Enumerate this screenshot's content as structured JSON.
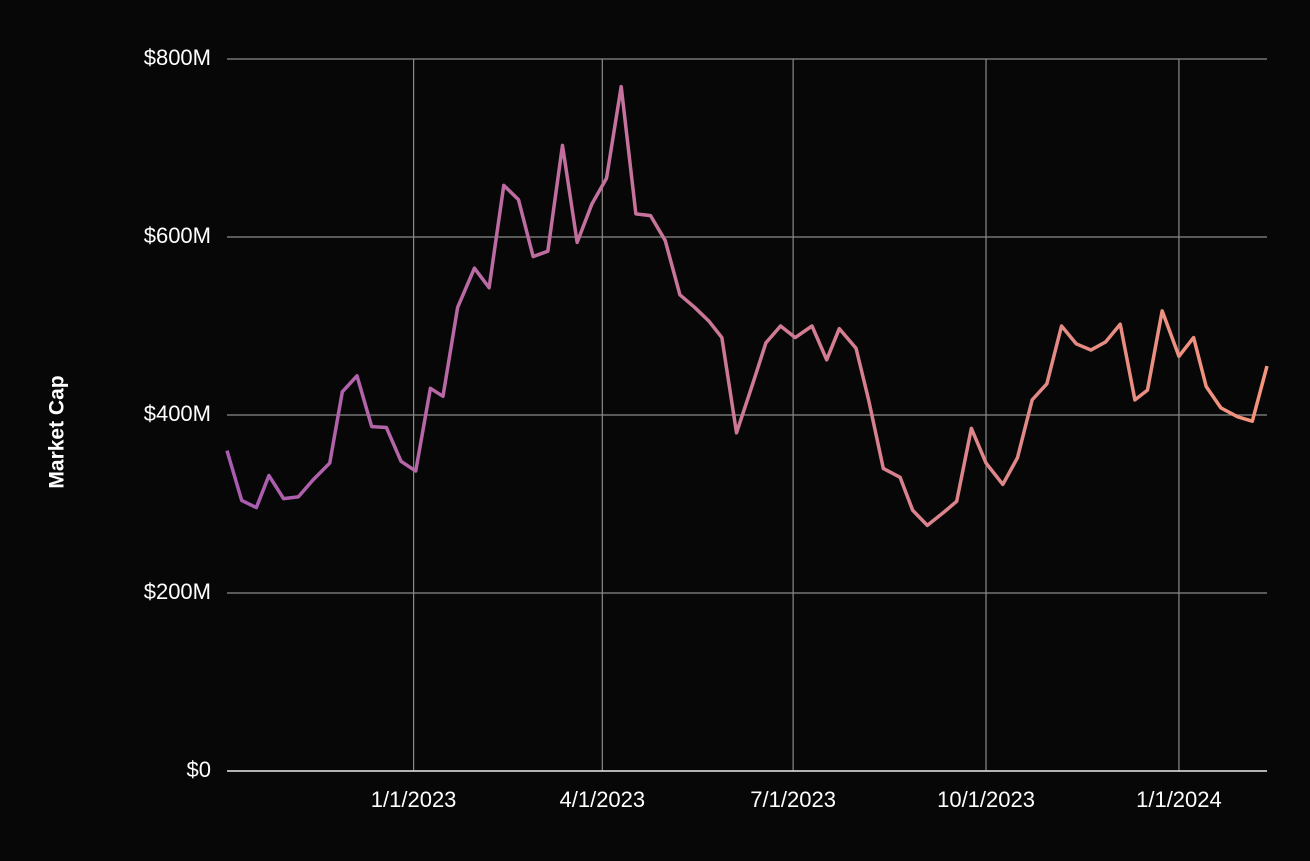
{
  "chart_data": {
    "type": "line",
    "y_label": "Market Cap",
    "x": [
      "2022-10-04",
      "2022-10-11",
      "2022-10-18",
      "2022-10-24",
      "2022-10-31",
      "2022-11-07",
      "2022-11-14",
      "2022-11-22",
      "2022-11-28",
      "2022-12-05",
      "2022-12-12",
      "2022-12-19",
      "2022-12-26",
      "2023-01-02",
      "2023-01-09",
      "2023-01-15",
      "2023-01-22",
      "2023-01-30",
      "2023-02-06",
      "2023-02-13",
      "2023-02-20",
      "2023-02-27",
      "2023-03-06",
      "2023-03-13",
      "2023-03-20",
      "2023-03-27",
      "2023-04-03",
      "2023-04-10",
      "2023-04-17",
      "2023-04-24",
      "2023-05-01",
      "2023-05-08",
      "2023-05-15",
      "2023-05-22",
      "2023-05-28",
      "2023-06-04",
      "2023-06-12",
      "2023-06-18",
      "2023-06-25",
      "2023-07-02",
      "2023-07-10",
      "2023-07-17",
      "2023-07-23",
      "2023-07-31",
      "2023-08-06",
      "2023-08-13",
      "2023-08-21",
      "2023-08-27",
      "2023-09-03",
      "2023-09-11",
      "2023-09-17",
      "2023-09-24",
      "2023-10-01",
      "2023-10-09",
      "2023-10-16",
      "2023-10-23",
      "2023-10-30",
      "2023-11-06",
      "2023-11-13",
      "2023-11-20",
      "2023-11-27",
      "2023-12-04",
      "2023-12-11",
      "2023-12-17",
      "2023-12-24",
      "2024-01-01",
      "2024-01-08",
      "2024-01-14",
      "2024-01-21",
      "2024-01-29",
      "2024-02-05",
      "2024-02-12"
    ],
    "series": [
      {
        "color": [
          "#a95cb1",
          "#f3957a"
        ],
        "values": [
          360000000,
          304000000,
          296000000,
          332000000,
          306000000,
          308000000,
          327000000,
          346000000,
          426000000,
          444000000,
          387000000,
          386000000,
          348000000,
          337000000,
          430000000,
          421000000,
          521000000,
          565000000,
          543000000,
          658000000,
          642000000,
          578000000,
          584000000,
          703000000,
          594000000,
          637000000,
          666000000,
          769000000,
          626000000,
          624000000,
          596000000,
          535000000,
          521000000,
          505000000,
          487000000,
          380000000,
          437000000,
          481000000,
          500000000,
          487000000,
          500000000,
          462000000,
          497000000,
          475000000,
          417000000,
          340000000,
          330000000,
          293000000,
          276000000,
          291000000,
          303000000,
          385000000,
          346000000,
          322000000,
          352000000,
          417000000,
          435000000,
          500000000,
          480000000,
          473000000,
          482000000,
          502000000,
          417000000,
          428000000,
          517000000,
          466000000,
          487000000,
          432000000,
          408000000,
          398000000,
          393000000,
          455000000
        ]
      }
    ],
    "xlim": [
      "2022-10-04",
      "2024-02-12"
    ],
    "xticks": [
      {
        "value": "2023-01-01",
        "label": "1/1/2023"
      },
      {
        "value": "2023-04-01",
        "label": "4/1/2023"
      },
      {
        "value": "2023-07-01",
        "label": "7/1/2023"
      },
      {
        "value": "2023-10-01",
        "label": "10/1/2023"
      },
      {
        "value": "2024-01-01",
        "label": "1/1/2024"
      }
    ],
    "ylim": [
      0,
      800000000
    ],
    "yticks": [
      {
        "value": 0,
        "label": "$0"
      },
      {
        "value": 200000000,
        "label": "$200M"
      },
      {
        "value": 400000000,
        "label": "$400M"
      },
      {
        "value": 600000000,
        "label": "$600M"
      },
      {
        "value": 800000000,
        "label": "$800M"
      }
    ],
    "grid": true
  }
}
